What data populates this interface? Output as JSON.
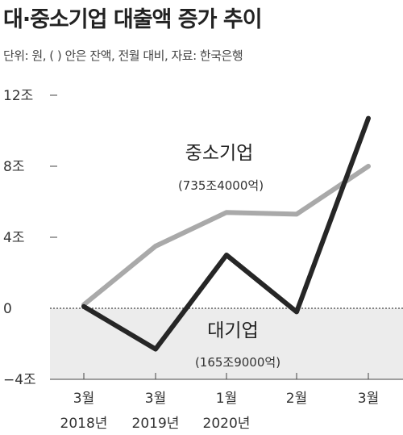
{
  "title": "대·중소기업 대출액 증가 추이",
  "subtitle": "단위: 원, ( ) 안은 잔액, 전월 대비, 자료: 한국은행",
  "colors": {
    "sme_line": "#a9a9a9",
    "large_line": "#262626",
    "negative_band": "#ececec",
    "axis": "#444444"
  },
  "chart_data": {
    "type": "line",
    "title": "대·중소기업 대출액 증가 추이",
    "subtitle": "단위: 원, ( ) 안은 잔액, 전월 대비, 자료: 한국은행",
    "categories": [
      {
        "month": "3월",
        "year": "2018년"
      },
      {
        "month": "3월",
        "year": "2019년"
      },
      {
        "month": "1월",
        "year": "2020년"
      },
      {
        "month": "2월",
        "year": ""
      },
      {
        "month": "3월",
        "year": ""
      }
    ],
    "x_index": [
      0,
      1,
      2,
      3,
      4
    ],
    "yticks": [
      {
        "value": 12,
        "label": "12조"
      },
      {
        "value": 8,
        "label": "8조"
      },
      {
        "value": 4,
        "label": "4조"
      },
      {
        "value": 0,
        "label": "0"
      },
      {
        "value": -4,
        "label": "−4조"
      }
    ],
    "ylim": [
      -4,
      12
    ],
    "unit": "조 원",
    "series": [
      {
        "name": "중소기업",
        "note": "(735조4000억)",
        "color": "#a9a9a9",
        "values": [
          0.2,
          3.5,
          5.4,
          5.3,
          8.0
        ]
      },
      {
        "name": "대기업",
        "note": "(165조9000억)",
        "color": "#262626",
        "values": [
          0.1,
          -2.3,
          3.0,
          -0.2,
          10.7
        ]
      }
    ],
    "shaded_negative_region": true,
    "grid": false
  }
}
